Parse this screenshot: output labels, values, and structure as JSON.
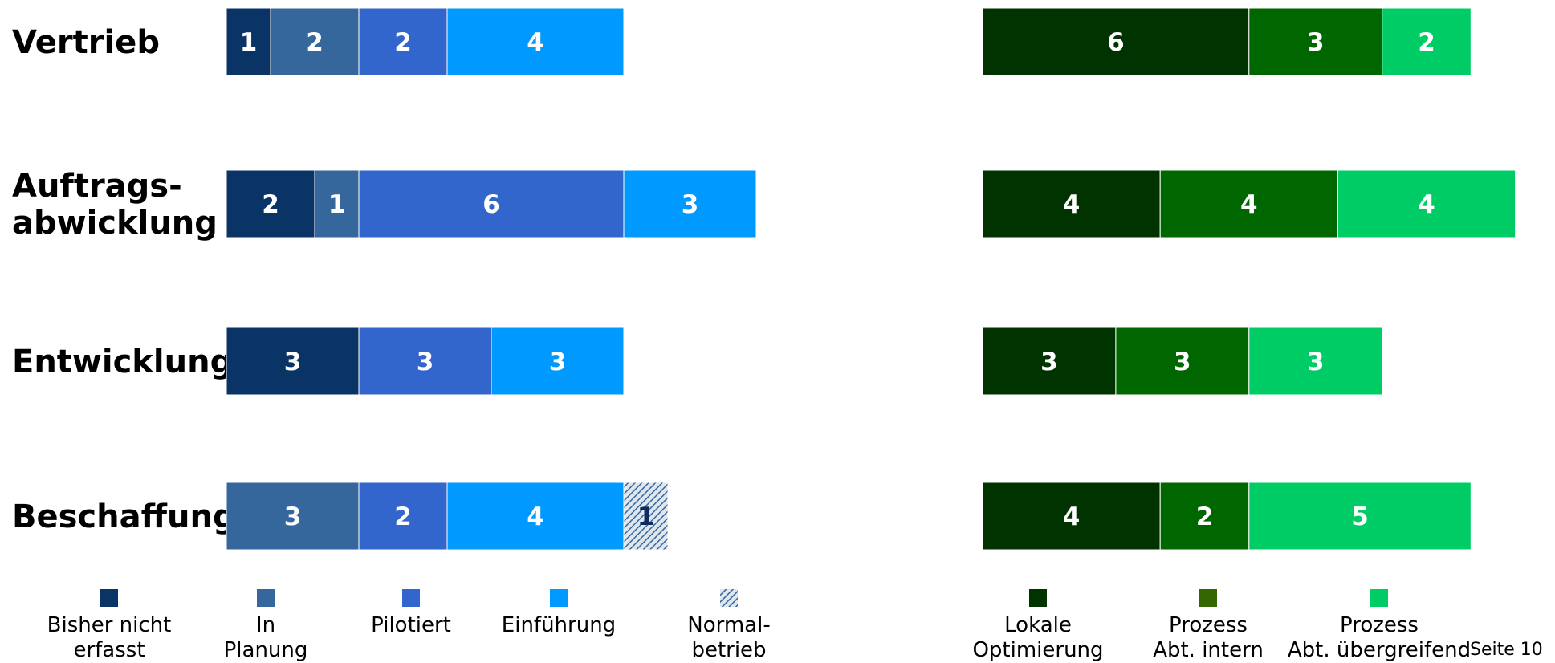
{
  "chart_data": [
    {
      "type": "bar",
      "orientation": "horizontal",
      "stacked": true,
      "categories": [
        "Vertrieb",
        "Auftrags-\nabwicklung",
        "Entwicklung",
        "Beschaffung"
      ],
      "series": [
        {
          "name": "Bisher nicht erfasst",
          "color": "#0b3466",
          "values": [
            1,
            2,
            3,
            0
          ]
        },
        {
          "name": "In Planung",
          "color": "#35679c",
          "values": [
            2,
            1,
            0,
            3
          ]
        },
        {
          "name": "Pilotiert",
          "color": "#3366cc",
          "values": [
            2,
            6,
            3,
            2
          ]
        },
        {
          "name": "Einführung",
          "color": "#0099ff",
          "values": [
            4,
            3,
            3,
            4
          ]
        },
        {
          "name": "Normalbetrieb",
          "color": "#35679c",
          "pattern": "hatched",
          "values": [
            0,
            0,
            0,
            1
          ]
        }
      ],
      "legend": {
        "position": "bottom",
        "labels": [
          [
            "Bisher nicht",
            "erfasst"
          ],
          [
            "In",
            "Planung"
          ],
          [
            "Pilotiert"
          ],
          [
            "Einführung"
          ],
          [
            "Normal-",
            "betrieb"
          ]
        ]
      }
    },
    {
      "type": "bar",
      "orientation": "horizontal",
      "stacked": true,
      "categories": [
        "Vertrieb",
        "Auftrags-\nabwicklung",
        "Entwicklung",
        "Beschaffung"
      ],
      "series": [
        {
          "name": "Lokale Optimierung",
          "color": "#003300",
          "values": [
            6,
            4,
            3,
            4
          ]
        },
        {
          "name": "Prozess Abt. intern",
          "color": "#006600",
          "values": [
            3,
            4,
            3,
            2
          ]
        },
        {
          "name": "Prozess Abt. übergreifend",
          "color": "#00cc66",
          "values": [
            2,
            4,
            3,
            5
          ]
        }
      ],
      "legend": {
        "position": "bottom",
        "labels": [
          [
            "Lokale",
            "Optimierung"
          ],
          [
            "Prozess",
            "Abt. intern"
          ],
          [
            "Prozess",
            "Abt. übergreifend"
          ]
        ],
        "swatch_colors": [
          "#003300",
          "#336600",
          "#00cc66"
        ]
      }
    }
  ],
  "page_number": "Seite 10"
}
